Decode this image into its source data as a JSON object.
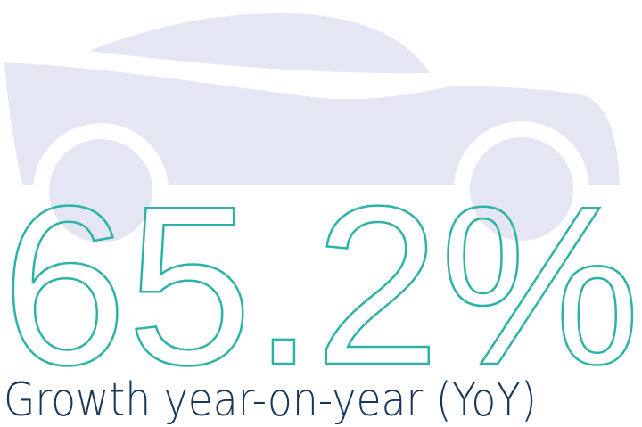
{
  "stat": {
    "value": "65.2%",
    "label": "Growth year-on-year (YoY)"
  }
}
